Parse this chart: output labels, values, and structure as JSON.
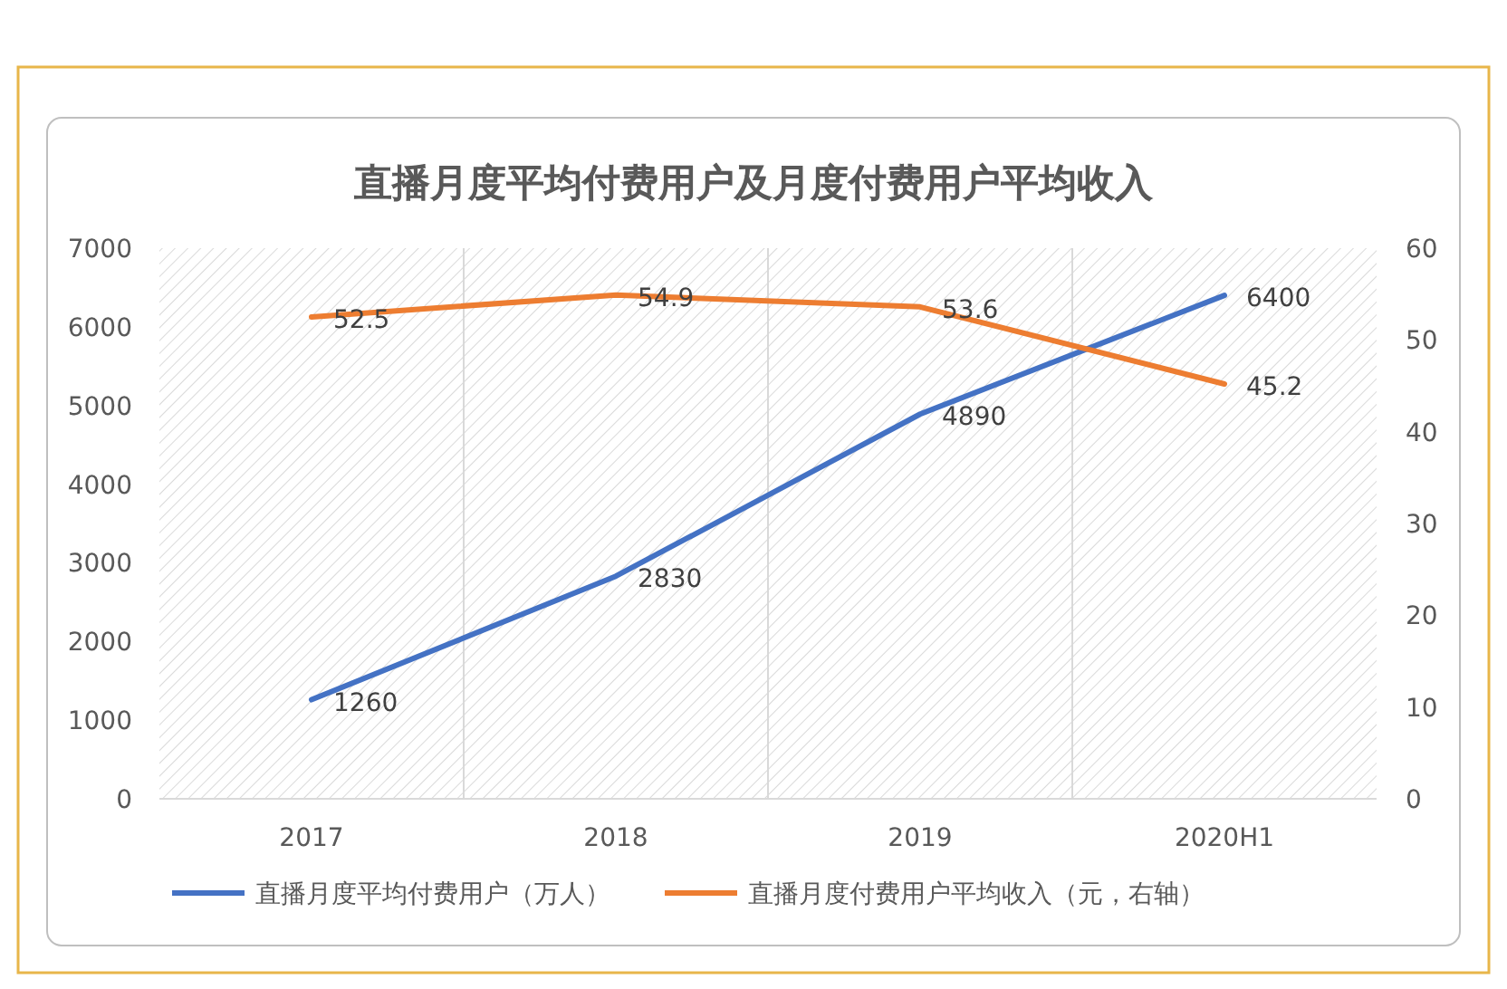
{
  "chart_data": {
    "type": "line",
    "title": "直播月度平均付费用户及月度付费用户平均收入",
    "categories": [
      "2017",
      "2018",
      "2019",
      "2020H1"
    ],
    "series": [
      {
        "name": "直播月度平均付费用户（万人）",
        "color": "#4472c4",
        "values": [
          1260,
          2830,
          4890,
          6400
        ]
      },
      {
        "name": "直播月度付费用户平均收入（元，右轴）",
        "color": "#ed7d31",
        "axis": "y2",
        "values": [
          52.5,
          54.9,
          53.6,
          45.2
        ]
      }
    ],
    "ylim": [
      0,
      7000
    ],
    "yticks": [
      0,
      1000,
      2000,
      3000,
      4000,
      5000,
      6000,
      7000
    ],
    "y2lim": [
      0,
      60
    ],
    "y2ticks": [
      0,
      10,
      20,
      30,
      40,
      50,
      60
    ],
    "data_labels": true,
    "legend": "bottom",
    "grid": "x",
    "marker": "none",
    "line_style": "solid"
  }
}
